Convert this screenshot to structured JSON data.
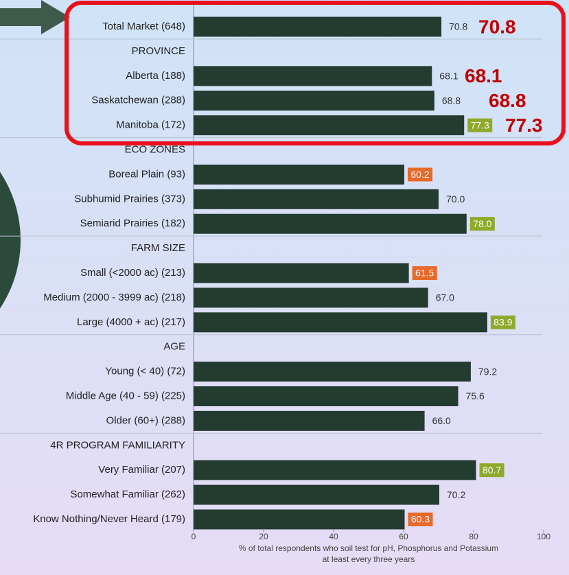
{
  "chart_data": {
    "type": "barh",
    "categories": [
      "Total Market (648)",
      "PROVINCE",
      "Alberta (188)",
      "Saskatchewan (288)",
      "Manitoba (172)",
      "ECO ZONES",
      "Boreal Plain (93)",
      "Subhumid Prairies (373)",
      "Semiarid Prairies (182)",
      "FARM SIZE",
      "Small (<2000 ac) (213)",
      "Medium (2000 - 3999 ac) (218)",
      "Large (4000 + ac) (217)",
      "AGE",
      "Young (< 40) (72)",
      "Middle Age (40 - 59) (225)",
      "Older (60+) (288)",
      "4R PROGRAM FAMILIARITY",
      "Very Familiar (207)",
      "Somewhat Familiar (262)",
      "Know Nothing/Never Heard (179)"
    ],
    "values": [
      70.8,
      null,
      68.1,
      68.8,
      77.3,
      null,
      60.2,
      70,
      78,
      null,
      61.5,
      67,
      83.9,
      null,
      79.2,
      75.6,
      66,
      null,
      80.7,
      70.2,
      60.3
    ],
    "value_labels": [
      "70.8",
      null,
      "68.1",
      "68.8",
      "77.3",
      null,
      "60.2",
      "70.0",
      "78.0",
      null,
      "61.5",
      "67.0",
      "83.9",
      null,
      "79.2",
      "75.6",
      "66.0",
      null,
      "80.7",
      "70.2",
      "60.3"
    ],
    "value_label_backgrounds": [
      null,
      null,
      null,
      null,
      "#8faa2b",
      null,
      "#e8692a",
      null,
      "#8faa2b",
      null,
      "#e8692a",
      null,
      "#8faa2b",
      null,
      null,
      null,
      null,
      null,
      "#8faa2b",
      null,
      "#e8692a"
    ],
    "color": "#243b30",
    "callouts": [
      "70.8",
      "68.1",
      "68.8",
      "77.3"
    ],
    "callout_color": "#c00000",
    "xlim": [
      0,
      100
    ],
    "xticks": [
      0,
      20,
      40,
      60,
      80,
      100
    ],
    "xlabel": [
      "% of total respondents who soil test for pH, Phosphorus and Potassium",
      "at least every three years"
    ]
  }
}
